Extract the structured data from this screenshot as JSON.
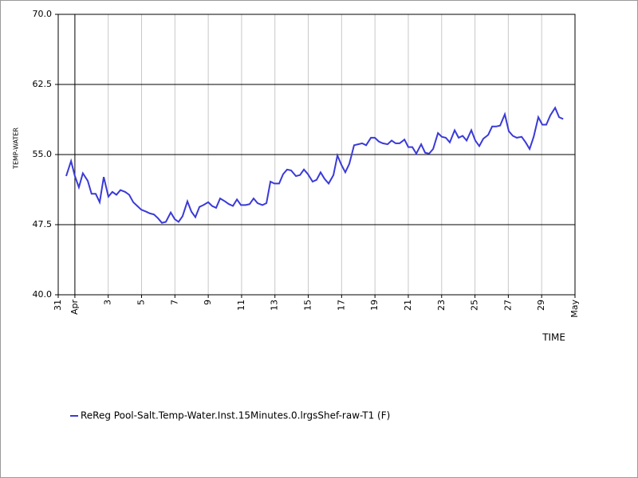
{
  "chart_data": {
    "type": "line",
    "y_label": "TEMP-WATER",
    "x_label": "TIME",
    "xlim": [
      0,
      31
    ],
    "xticks": [
      {
        "value": 0,
        "label": "31"
      },
      {
        "value": 1,
        "label": "Apr"
      },
      {
        "value": 3,
        "label": "3"
      },
      {
        "value": 5,
        "label": "5"
      },
      {
        "value": 7,
        "label": "7"
      },
      {
        "value": 9,
        "label": "9"
      },
      {
        "value": 11,
        "label": "11"
      },
      {
        "value": 13,
        "label": "13"
      },
      {
        "value": 15,
        "label": "15"
      },
      {
        "value": 17,
        "label": "17"
      },
      {
        "value": 19,
        "label": "19"
      },
      {
        "value": 21,
        "label": "21"
      },
      {
        "value": 23,
        "label": "23"
      },
      {
        "value": 25,
        "label": "25"
      },
      {
        "value": 27,
        "label": "27"
      },
      {
        "value": 29,
        "label": "29"
      },
      {
        "value": 31,
        "label": "May"
      }
    ],
    "ylim": [
      40,
      70
    ],
    "yticks": [
      {
        "value": 40,
        "label": "40.0"
      },
      47.5,
      {
        "value": 55,
        "label": "55.0"
      },
      62.5,
      {
        "value": 70,
        "label": "70.0"
      }
    ],
    "grid": true,
    "x": [
      0.48,
      0.77,
      1.0,
      1.24,
      1.48,
      1.77,
      2.0,
      2.25,
      2.49,
      2.73,
      3.01,
      3.25,
      3.49,
      3.73,
      4.02,
      4.26,
      4.5,
      4.74,
      4.98,
      5.26,
      5.5,
      5.74,
      5.98,
      6.22,
      6.46,
      6.75,
      6.99,
      7.22,
      7.46,
      7.75,
      7.99,
      8.23,
      8.47,
      8.71,
      9.0,
      9.23,
      9.47,
      9.71,
      10.0,
      10.24,
      10.48,
      10.72,
      10.96,
      11.24,
      11.48,
      11.72,
      11.96,
      12.25,
      12.49,
      12.73,
      12.97,
      13.25,
      13.49,
      13.73,
      13.97,
      14.26,
      14.5,
      14.74,
      14.98,
      15.26,
      15.5,
      15.74,
      15.98,
      16.22,
      16.51,
      16.75,
      16.99,
      17.22,
      17.46,
      17.75,
      17.99,
      18.23,
      18.47,
      18.76,
      18.99,
      19.23,
      19.47,
      19.76,
      20.0,
      20.24,
      20.48,
      20.77,
      21.0,
      21.24,
      21.48,
      21.77,
      22.01,
      22.25,
      22.49,
      22.78,
      23.01,
      23.25,
      23.49,
      23.78,
      24.02,
      24.26,
      24.5,
      24.78,
      25.02,
      25.26,
      25.5,
      25.79,
      26.03,
      26.27,
      26.51,
      26.79,
      27.03,
      27.27,
      27.51,
      27.8,
      28.04,
      28.28,
      28.52,
      28.8,
      29.04,
      29.28,
      29.52,
      29.81,
      30.05,
      30.29
    ],
    "series": [
      {
        "name": "ReReg Pool-Salt.Temp-Water.Inst.15Minutes.0.lrgsShef-raw-T1 (F)",
        "color": "#3a3ad8",
        "values": [
          52.7,
          54.3,
          52.7,
          51.5,
          53.0,
          52.2,
          50.8,
          50.8,
          49.9,
          52.6,
          50.5,
          51.0,
          50.7,
          51.2,
          51.0,
          50.7,
          49.9,
          49.5,
          49.1,
          48.9,
          48.7,
          48.6,
          48.2,
          47.7,
          47.8,
          48.8,
          48.1,
          47.8,
          48.4,
          50.0,
          48.9,
          48.3,
          49.4,
          49.6,
          49.9,
          49.5,
          49.3,
          50.3,
          50.0,
          49.7,
          49.5,
          50.2,
          49.6,
          49.6,
          49.7,
          50.3,
          49.8,
          49.6,
          49.8,
          52.1,
          51.9,
          51.9,
          52.9,
          53.4,
          53.3,
          52.7,
          52.8,
          53.4,
          52.9,
          52.1,
          52.3,
          53.1,
          52.4,
          51.9,
          52.8,
          54.9,
          53.9,
          53.1,
          54.0,
          56.0,
          56.1,
          56.2,
          56.0,
          56.8,
          56.8,
          56.4,
          56.2,
          56.1,
          56.5,
          56.2,
          56.2,
          56.6,
          55.8,
          55.8,
          55.1,
          56.1,
          55.2,
          55.1,
          55.6,
          57.3,
          56.9,
          56.8,
          56.3,
          57.6,
          56.8,
          57.0,
          56.5,
          57.6,
          56.5,
          55.9,
          56.7,
          57.1,
          58.0,
          58.0,
          58.1,
          59.3,
          57.5,
          57.0,
          56.8,
          56.9,
          56.3,
          55.6,
          56.9,
          59.0,
          58.2,
          58.2,
          59.2,
          60.0,
          59.0,
          58.8
        ]
      }
    ]
  }
}
